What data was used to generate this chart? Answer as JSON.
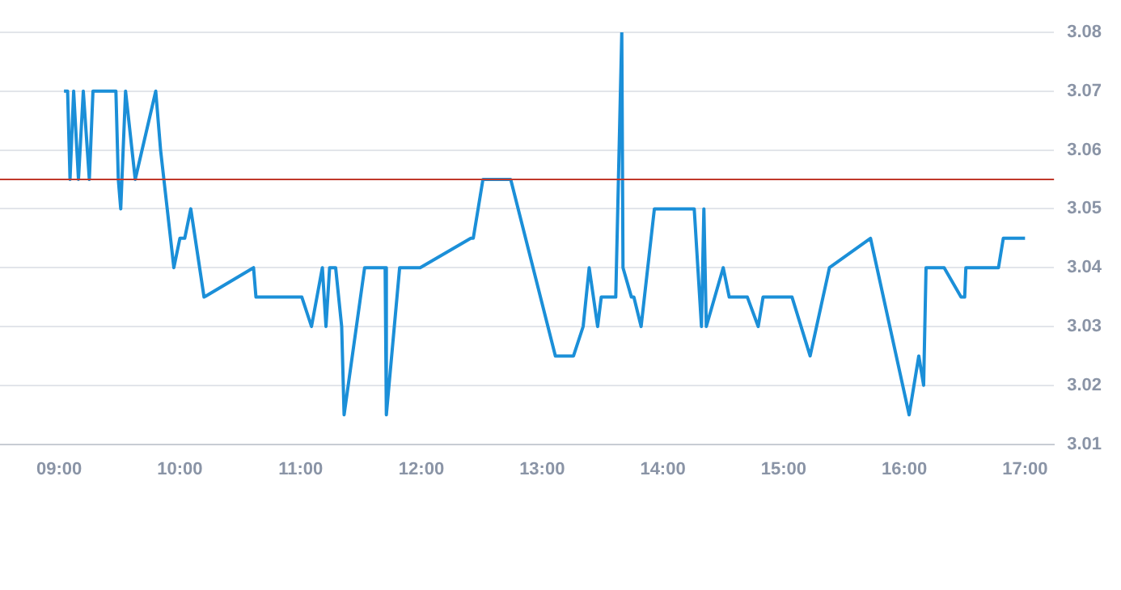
{
  "chart_data": {
    "type": "line",
    "x": [
      9.04,
      9.07,
      9.09,
      9.12,
      9.16,
      9.2,
      9.25,
      9.28,
      9.47,
      9.49,
      9.51,
      9.55,
      9.63,
      9.8,
      9.84,
      9.95,
      10,
      10.04,
      10.09,
      10.2,
      10.61,
      10.63,
      11.01,
      11.09,
      11.18,
      11.21,
      11.24,
      11.29,
      11.34,
      11.36,
      11.53,
      11.7,
      11.71,
      11.82,
      11.99,
      12.41,
      12.43,
      12.51,
      12.74,
      13.11,
      13.26,
      13.34,
      13.39,
      13.46,
      13.49,
      13.61,
      13.66,
      13.67,
      13.74,
      13.76,
      13.82,
      13.93,
      14.26,
      14.32,
      14.34,
      14.36,
      14.5,
      14.55,
      14.7,
      14.79,
      14.83,
      15.07,
      15.22,
      15.38,
      15.72,
      16.04,
      16.12,
      16.16,
      16.18,
      16.33,
      16.47,
      16.5,
      16.51,
      16.78,
      16.82,
      17
    ],
    "series": [
      {
        "color": "#1b8fd8",
        "values": [
          3.07,
          3.07,
          3.055,
          3.07,
          3.055,
          3.07,
          3.055,
          3.07,
          3.07,
          3.055,
          3.05,
          3.07,
          3.055,
          3.07,
          3.06,
          3.04,
          3.045,
          3.045,
          3.05,
          3.035,
          3.04,
          3.035,
          3.035,
          3.03,
          3.04,
          3.03,
          3.04,
          3.04,
          3.03,
          3.015,
          3.04,
          3.04,
          3.015,
          3.04,
          3.04,
          3.045,
          3.045,
          3.055,
          3.055,
          3.025,
          3.025,
          3.03,
          3.04,
          3.03,
          3.035,
          3.035,
          3.08,
          3.04,
          3.035,
          3.035,
          3.03,
          3.05,
          3.05,
          3.03,
          3.05,
          3.03,
          3.04,
          3.035,
          3.035,
          3.03,
          3.035,
          3.035,
          3.025,
          3.04,
          3.045,
          3.015,
          3.025,
          3.02,
          3.04,
          3.04,
          3.035,
          3.035,
          3.04,
          3.04,
          3.045,
          3.045
        ]
      }
    ],
    "xlim": [
      8.51,
      17.24
    ],
    "xticks": [
      {
        "value": 9,
        "label": "09:00"
      },
      {
        "value": 10,
        "label": "10:00"
      },
      {
        "value": 11,
        "label": "11:00"
      },
      {
        "value": 12,
        "label": "12:00"
      },
      {
        "value": 13,
        "label": "13:00"
      },
      {
        "value": 14,
        "label": "14:00"
      },
      {
        "value": 15,
        "label": "15:00"
      },
      {
        "value": 16,
        "label": "16:00"
      },
      {
        "value": 17,
        "label": "17:00"
      }
    ],
    "ylim": [
      3.01,
      3.08
    ],
    "yticks": [
      3.01,
      3.02,
      3.03,
      3.04,
      3.05,
      3.06,
      3.07,
      3.08
    ],
    "ref_lines": [
      {
        "axis": "y",
        "value": 3.055,
        "color": "#c0392b"
      }
    ],
    "grid": "y",
    "legend": false,
    "marker": "none",
    "line_style": "solid"
  }
}
